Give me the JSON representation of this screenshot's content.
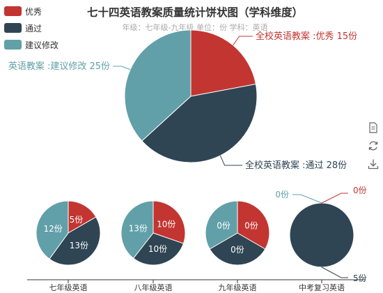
{
  "legend": [
    {
      "label": "优秀",
      "color": "#c23531"
    },
    {
      "label": "通过",
      "color": "#2f4554"
    },
    {
      "label": "建议修改",
      "color": "#61a0a8"
    }
  ],
  "title": "七十四英语教案质量统计饼状图（学科维度）",
  "subtitle": "年级：七年级-九年级      单位：份      学科：英语",
  "toolbox": [
    {
      "name": "data-view-icon"
    },
    {
      "name": "restore-icon"
    },
    {
      "name": "save-image-icon"
    }
  ],
  "chart_data": [
    {
      "type": "pie",
      "name": "全校英语教案",
      "categories": [
        "优秀",
        "通过",
        "建议修改"
      ],
      "values": [
        15,
        28,
        25
      ],
      "labels": [
        "全校英语教案 :优秀 15份",
        "全校英语教案 :通过 28份",
        "英语教案 :建议修改 25份"
      ],
      "label_colors": [
        "#c23531",
        "#2f4554",
        "#61a0a8"
      ]
    },
    {
      "type": "pie",
      "name": "七年级英语",
      "categories": [
        "优秀",
        "通过",
        "建议修改"
      ],
      "values": [
        5,
        13,
        12
      ],
      "labels": [
        "5份",
        "13份",
        "12份"
      ]
    },
    {
      "type": "pie",
      "name": "八年级英语",
      "categories": [
        "优秀",
        "通过",
        "建议修改"
      ],
      "values": [
        10,
        10,
        13
      ],
      "labels": [
        "10份",
        "10份",
        "13份"
      ]
    },
    {
      "type": "pie",
      "name": "九年级英语",
      "categories": [
        "优秀",
        "通过",
        "建议修改"
      ],
      "values": [
        0,
        0,
        0
      ],
      "labels": [
        "0份",
        "0份",
        "0份"
      ]
    },
    {
      "type": "pie",
      "name": "中考复习英语",
      "categories": [
        "优秀",
        "通过",
        "建议修改"
      ],
      "values": [
        0,
        5,
        0
      ],
      "labels": [
        "0份",
        "5份",
        "0份"
      ]
    }
  ],
  "xaxis_labels": [
    "七年级英语",
    "八年级英语",
    "九年级英语",
    "中考复习英语"
  ]
}
